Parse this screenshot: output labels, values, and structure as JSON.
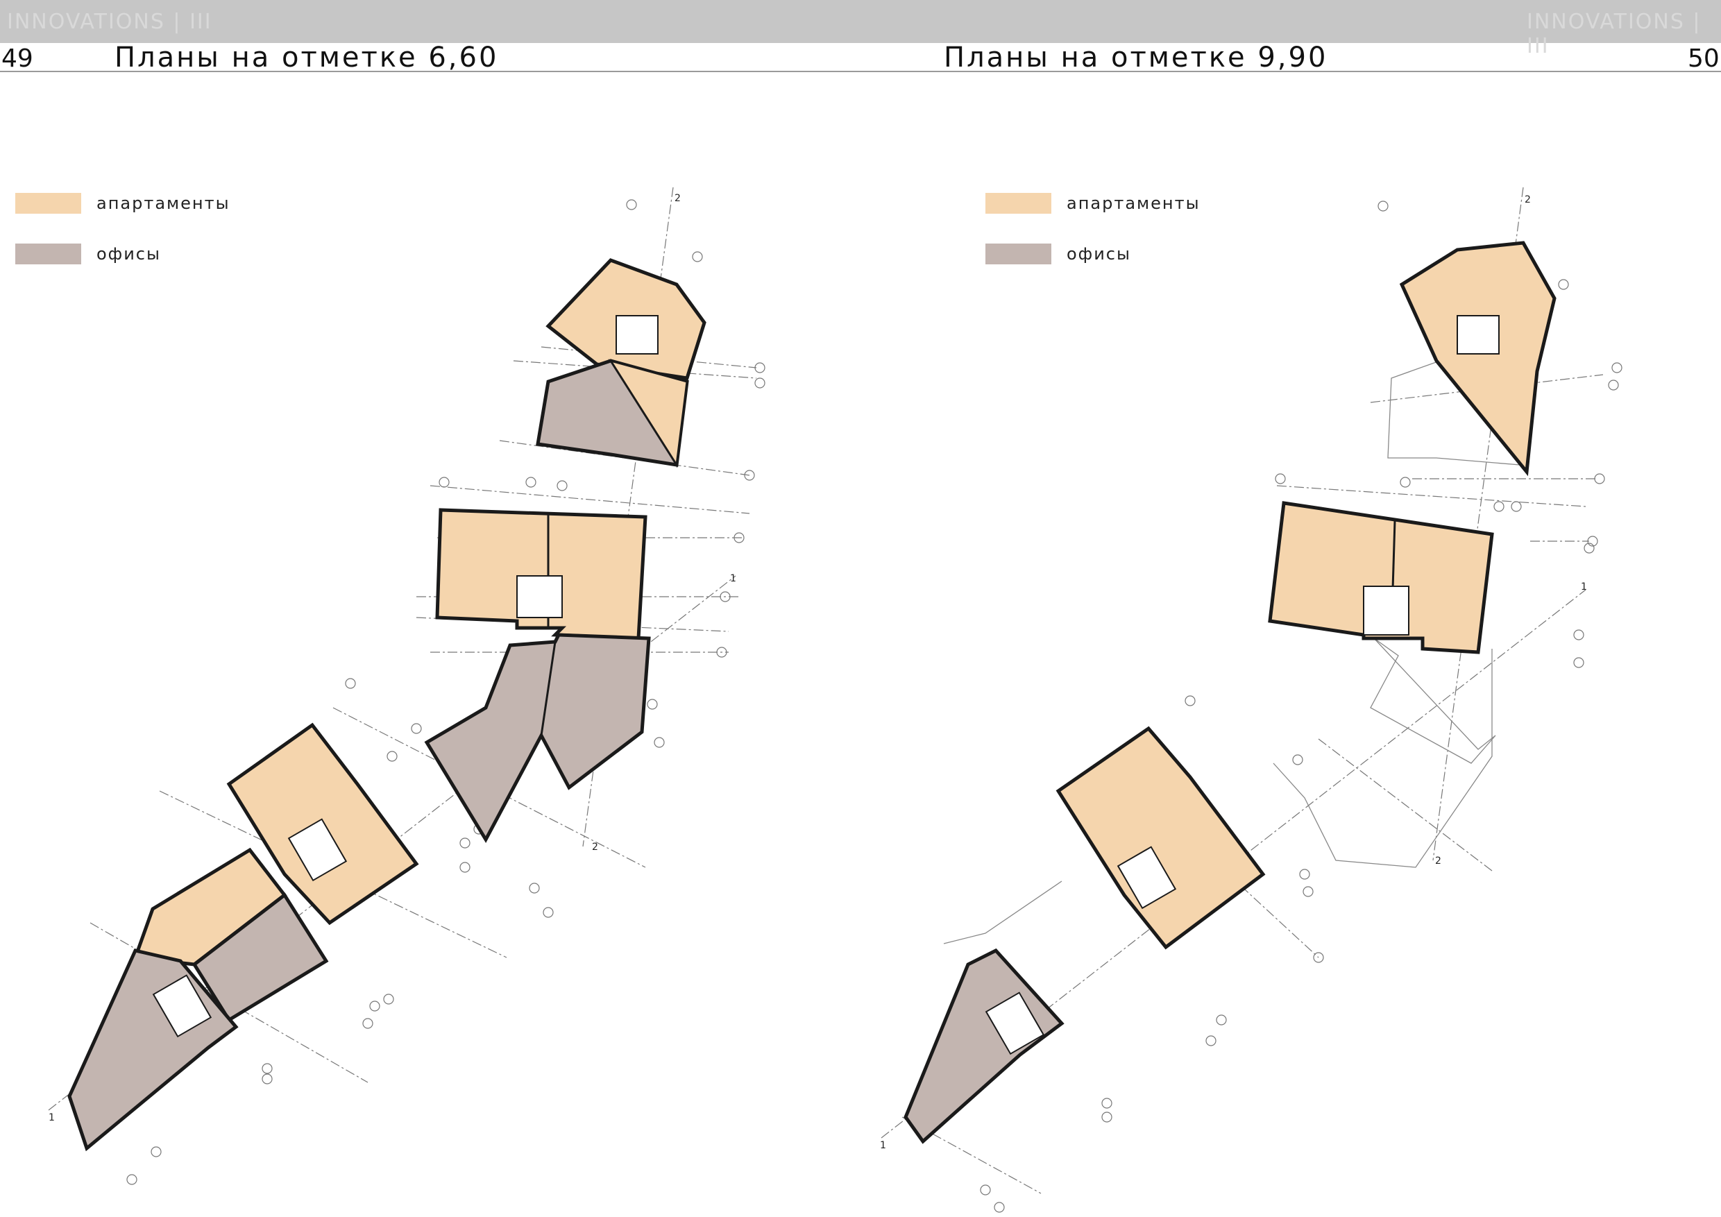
{
  "header": {
    "left_page_number": "49",
    "right_page_number": "50",
    "left_title": "Планы на отметке 6,60",
    "right_title": "Планы на отметке 9,90",
    "left_watermark": "INNOVATIONS  |  III",
    "right_watermark": "INNOVATIONS  |  III"
  },
  "legend": {
    "apartments": "апартаменты",
    "offices": "офисы"
  },
  "colors": {
    "apartments": "#f5d5ad",
    "offices": "#c3b5b0",
    "walls": "#1a1a1a",
    "axes": "#777777",
    "header_band": "#c6c6c6"
  },
  "section_markers": {
    "one": "1",
    "two": "2"
  }
}
